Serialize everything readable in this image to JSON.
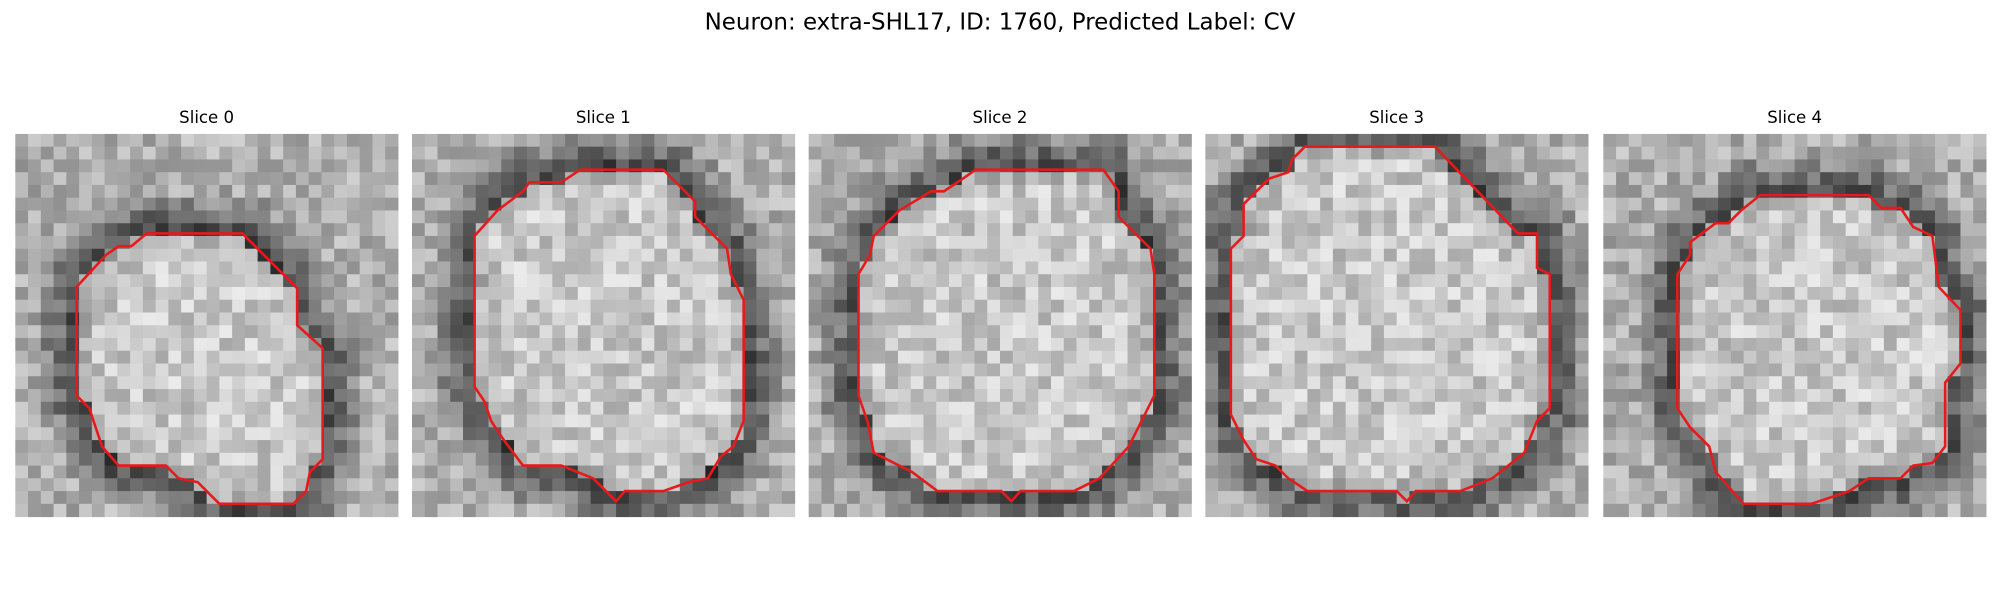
{
  "title": "Neuron: extra-SHL17, ID: 1760, Predicted Label: CV",
  "panels": [
    {
      "title": "Slice 0"
    },
    {
      "title": "Slice 1"
    },
    {
      "title": "Slice 2"
    },
    {
      "title": "Slice 3"
    },
    {
      "title": "Slice 4"
    }
  ]
}
